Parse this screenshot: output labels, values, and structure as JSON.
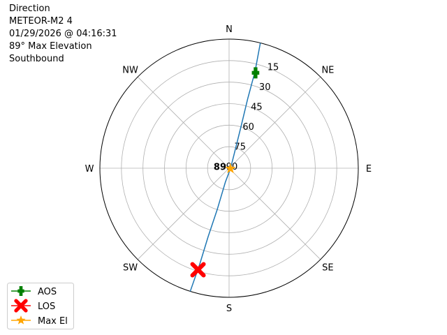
{
  "header": {
    "lines": [
      "Direction",
      "METEOR-M2 4",
      "01/29/2026 @ 04:16:31",
      "89° Max Elevation",
      "Southbound"
    ]
  },
  "chart_data": {
    "type": "polar",
    "theta_direction": "clockwise",
    "theta_zero": "N",
    "direction_labels": [
      {
        "label": "N",
        "az": 0
      },
      {
        "label": "NE",
        "az": 45
      },
      {
        "label": "E",
        "az": 90
      },
      {
        "label": "SE",
        "az": 135
      },
      {
        "label": "S",
        "az": 180
      },
      {
        "label": "SW",
        "az": 225
      },
      {
        "label": "W",
        "az": 270
      },
      {
        "label": "NW",
        "az": 315
      }
    ],
    "radial_axis": "elevation (deg), 90 at center, 0 at edge",
    "radial_ticks": [
      "15",
      "30",
      "45",
      "60",
      "75",
      "90"
    ],
    "radial_tick_values": [
      15,
      30,
      45,
      60,
      75,
      90
    ],
    "grid": true,
    "track": {
      "color": "#1f77b4",
      "points": [
        [
          14,
          0
        ],
        [
          15,
          20
        ],
        [
          15,
          40
        ],
        [
          16,
          60
        ],
        [
          20,
          80
        ],
        [
          108,
          89
        ],
        [
          195,
          80
        ],
        [
          196,
          60
        ],
        [
          197,
          40
        ],
        [
          197,
          20
        ],
        [
          197.5,
          0
        ]
      ]
    },
    "markers": [
      {
        "name": "AOS",
        "az": 15.5,
        "el": 21,
        "color": "#008000",
        "symbol": "plus"
      },
      {
        "name": "LOS",
        "az": 197,
        "el": 16,
        "color": "#ff0000",
        "symbol": "x"
      },
      {
        "name": "Max El",
        "az": 108,
        "el": 89,
        "color": "#ffa500",
        "symbol": "star"
      }
    ],
    "annotation": {
      "text": "89",
      "az": 108,
      "el": 89
    },
    "legend": {
      "placement": "bottom-left",
      "entries": [
        "AOS",
        "LOS",
        "Max El"
      ]
    }
  }
}
